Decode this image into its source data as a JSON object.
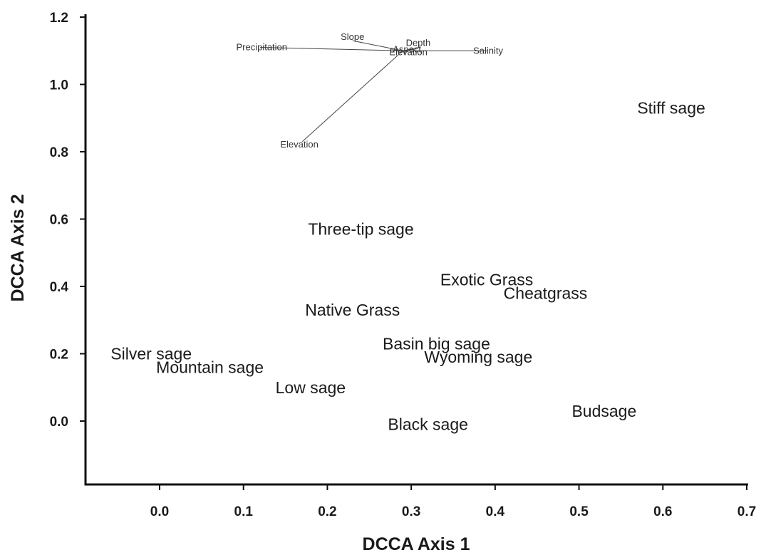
{
  "chart_data": {
    "type": "scatter",
    "title": "",
    "xlabel": "DCCA Axis 1",
    "ylabel": "DCCA Axis 2",
    "xlim": [
      -0.09,
      0.7
    ],
    "ylim": [
      -0.18,
      1.2
    ],
    "xticks": [
      "0.0",
      "0.1",
      "0.2",
      "0.3",
      "0.4",
      "0.5",
      "0.6",
      "0.7"
    ],
    "xtick_values": [
      0.0,
      0.1,
      0.2,
      0.3,
      0.4,
      0.5,
      0.6,
      0.7
    ],
    "yticks": [
      "0.0",
      "0.2",
      "0.4",
      "0.6",
      "0.8",
      "1.0",
      "1.2"
    ],
    "ytick_values": [
      0.0,
      0.2,
      0.4,
      0.6,
      0.8,
      1.0,
      1.2
    ],
    "grid": false,
    "legend": false,
    "points": [
      {
        "label": "Stiff sage",
        "x": 0.61,
        "y": 0.93
      },
      {
        "label": "Three-tip sage",
        "x": 0.24,
        "y": 0.57
      },
      {
        "label": "Exotic Grass",
        "x": 0.39,
        "y": 0.42
      },
      {
        "label": "Cheatgrass",
        "x": 0.46,
        "y": 0.38
      },
      {
        "label": "Native Grass",
        "x": 0.23,
        "y": 0.33
      },
      {
        "label": "Basin big sage",
        "x": 0.33,
        "y": 0.23
      },
      {
        "label": "Wyoming sage",
        "x": 0.38,
        "y": 0.19
      },
      {
        "label": "Silver sage",
        "x": -0.01,
        "y": 0.2
      },
      {
        "label": "Mountain sage",
        "x": 0.06,
        "y": 0.16
      },
      {
        "label": "Low sage",
        "x": 0.18,
        "y": 0.1
      },
      {
        "label": "Black sage",
        "x": 0.32,
        "y": -0.01
      },
      {
        "label": "Budsage",
        "x": 0.53,
        "y": 0.03
      }
    ],
    "vectors": {
      "origin": {
        "x": 0.29,
        "y": 1.1
      },
      "arrows": [
        {
          "label": "Precipitation",
          "x": 0.12,
          "y": 1.11
        },
        {
          "label": "Slope",
          "x": 0.23,
          "y": 1.13
        },
        {
          "label": "Depth",
          "x": 0.31,
          "y": 1.11
        },
        {
          "label": "Aspect",
          "x": 0.3,
          "y": 1.1
        },
        {
          "label": "Elevation",
          "x": 0.3,
          "y": 1.1
        },
        {
          "label": "Salinity",
          "x": 0.39,
          "y": 1.1
        },
        {
          "label": "Elevation",
          "x": 0.17,
          "y": 0.83
        }
      ]
    }
  }
}
